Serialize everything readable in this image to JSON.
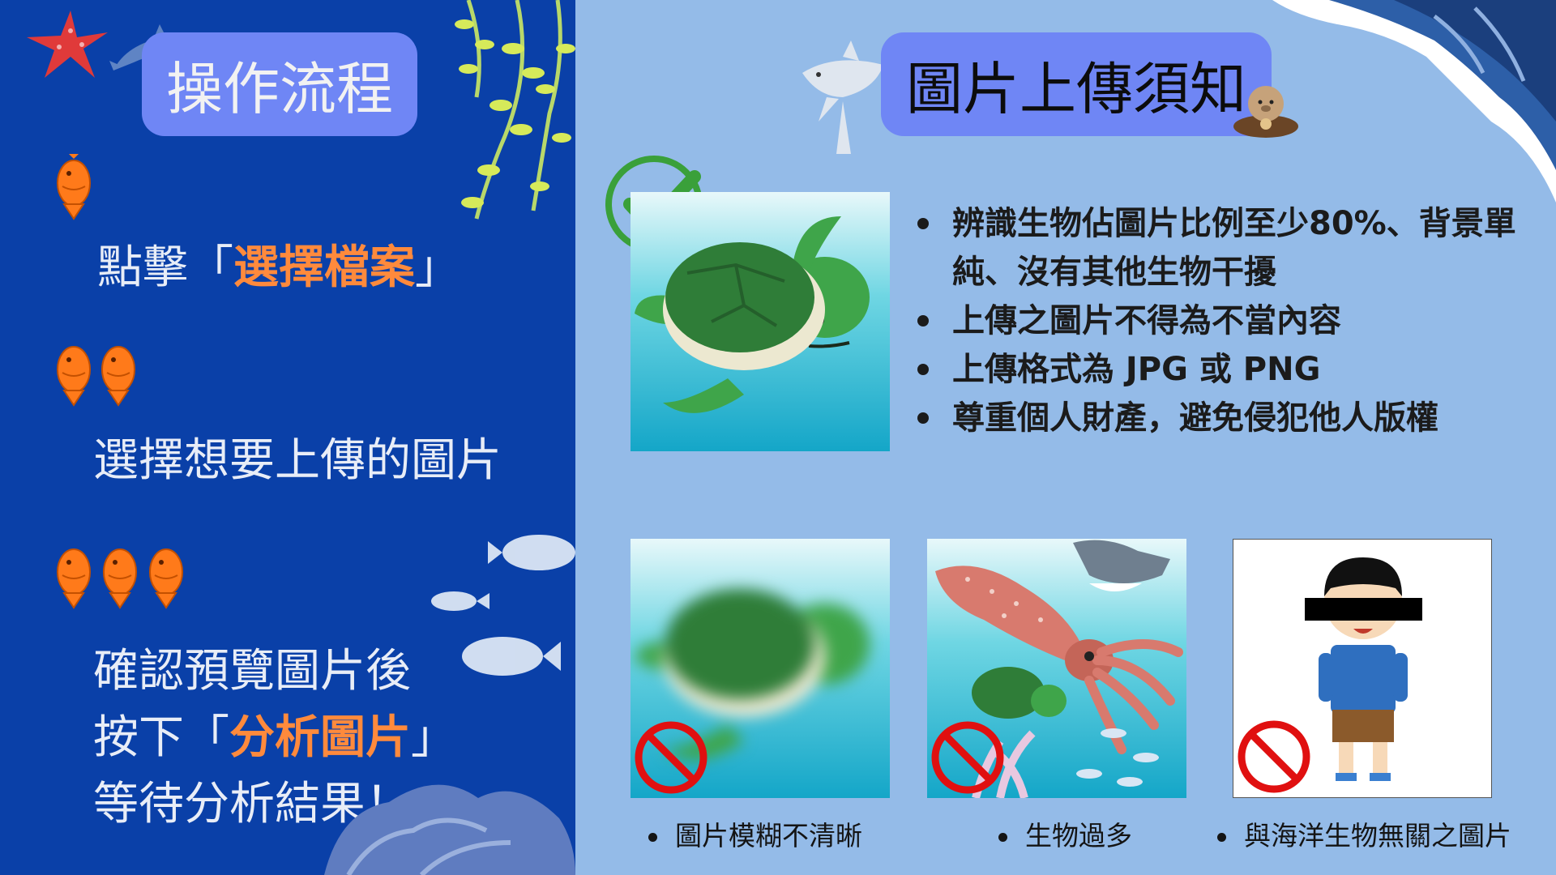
{
  "left_panel": {
    "title": "操作流程",
    "step1": {
      "pre": "點擊「",
      "highlight": "選擇檔案",
      "post": "」"
    },
    "step2": {
      "text": "選擇想要上傳的圖片"
    },
    "step3": {
      "line1": "確認預覽圖片後",
      "line2_pre": "按下「",
      "line2_highlight": "分析圖片",
      "line2_post": "」",
      "line3": "等待分析結果！"
    }
  },
  "right_panel": {
    "title": "圖片上傳須知",
    "rules": [
      "辨識生物佔圖片比例至少80%、背景單純、沒有其他生物干擾",
      "上傳之圖片不得為不當內容",
      "上傳格式為 JPG 或 PNG",
      "尊重個人財產，避免侵犯他人版權"
    ],
    "captions": [
      "圖片模糊不清晰",
      "生物過多",
      "與海洋生物無關之圖片"
    ]
  },
  "colors": {
    "left_bg": "#0a40a8",
    "right_bg": "#94bbe8",
    "pill": "#6f86f5",
    "highlight": "#ff8a3c",
    "check": "#3aa03a",
    "prohibit": "#e01010"
  },
  "icons": [
    "starfish-icon",
    "dolphin-icon",
    "seaweed-icon",
    "shark-icon",
    "sea-otter-icon",
    "wave-icon",
    "fish-icon",
    "check-icon",
    "prohibited-icon",
    "turtle-icon",
    "squid-icon",
    "boy-icon",
    "rock-icon"
  ]
}
